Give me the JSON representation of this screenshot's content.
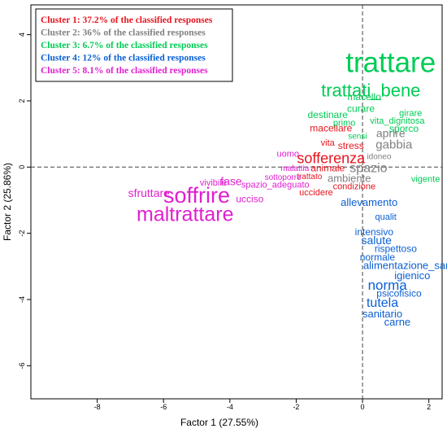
{
  "chart_data": {
    "type": "scatter",
    "title": "",
    "xlabel": "Factor 1 (27.55%)",
    "ylabel": "Factor 2 (25.86%)",
    "xlim": [
      -10,
      2.4
    ],
    "ylim": [
      -7.0,
      4.9
    ],
    "x_ticks": [
      -8,
      -6,
      -4,
      -2,
      0,
      2
    ],
    "y_ticks": [
      -6,
      -4,
      -2,
      0,
      2,
      4
    ],
    "reference_lines": {
      "x": 0,
      "y": 0,
      "style": "dashed"
    },
    "legend": {
      "placement": "top-left",
      "entries": [
        {
          "label": "Cluster 1: 37.2% of the classified responses",
          "color": "#e8141e"
        },
        {
          "label": "Cluster 2: 36% of the classified responses",
          "color": "#808080"
        },
        {
          "label": "Cluster 3: 6.7% of the classified responses",
          "color": "#00cc55"
        },
        {
          "label": "Cluster 4: 12% of the classified responses",
          "color": "#0a5fd4"
        },
        {
          "label": "Cluster 5: 8.1% of the classified responses",
          "color": "#e020d0"
        }
      ]
    },
    "series": [
      {
        "color": "#e8141e",
        "points": [
          {
            "label": "macellare",
            "x": -0.95,
            "y": 1.15,
            "size": 12
          },
          {
            "label": "vita",
            "x": -1.05,
            "y": 0.72,
            "size": 11
          },
          {
            "label": "stress",
            "x": -0.35,
            "y": 0.62,
            "size": 12
          },
          {
            "label": "sofferenza",
            "x": -0.95,
            "y": 0.24,
            "size": 18
          },
          {
            "label": "animale",
            "x": -1.05,
            "y": -0.05,
            "size": 12
          },
          {
            "label": "trattato",
            "x": -1.6,
            "y": -0.3,
            "size": 10
          },
          {
            "label": "condizione",
            "x": -0.25,
            "y": -0.6,
            "size": 11
          },
          {
            "label": "uccidere",
            "x": -1.4,
            "y": -0.78,
            "size": 11
          }
        ]
      },
      {
        "color": "#808080",
        "points": [
          {
            "label": "aprire",
            "x": 0.85,
            "y": 1.0,
            "size": 14
          },
          {
            "label": "gabbia",
            "x": 0.95,
            "y": 0.66,
            "size": 15
          },
          {
            "label": "idoneo",
            "x": 0.5,
            "y": 0.3,
            "size": 10
          },
          {
            "label": "spazio",
            "x": 0.18,
            "y": -0.05,
            "size": 16
          },
          {
            "label": "ambiente",
            "x": -0.4,
            "y": -0.36,
            "size": 13
          }
        ]
      },
      {
        "color": "#00cc55",
        "points": [
          {
            "label": "trattare",
            "x": 0.85,
            "y": 3.1,
            "size": 35
          },
          {
            "label": "trattati_bene",
            "x": 0.25,
            "y": 2.28,
            "size": 22
          },
          {
            "label": "macello",
            "x": 0.05,
            "y": 2.1,
            "size": 12
          },
          {
            "label": "curare",
            "x": -0.05,
            "y": 1.74,
            "size": 12
          },
          {
            "label": "destinare",
            "x": -1.05,
            "y": 1.56,
            "size": 12
          },
          {
            "label": "girare",
            "x": 1.45,
            "y": 1.62,
            "size": 11
          },
          {
            "label": "primo",
            "x": -0.55,
            "y": 1.32,
            "size": 11
          },
          {
            "label": "vita_dignitosa",
            "x": 1.05,
            "y": 1.38,
            "size": 11
          },
          {
            "label": "sporco",
            "x": 1.25,
            "y": 1.14,
            "size": 12
          },
          {
            "label": "sensi",
            "x": -0.15,
            "y": 0.92,
            "size": 10
          },
          {
            "label": "vigente",
            "x": 1.9,
            "y": -0.38,
            "size": 11
          }
        ]
      },
      {
        "color": "#0a5fd4",
        "points": [
          {
            "label": "allevamento",
            "x": 0.2,
            "y": -1.09,
            "size": 13
          },
          {
            "label": "qualit",
            "x": 0.7,
            "y": -1.52,
            "size": 11
          },
          {
            "label": "intensivo",
            "x": 0.35,
            "y": -1.98,
            "size": 12
          },
          {
            "label": "salute",
            "x": 0.42,
            "y": -2.24,
            "size": 14
          },
          {
            "label": "rispettoso",
            "x": 1.0,
            "y": -2.48,
            "size": 12
          },
          {
            "label": "normale",
            "x": 0.45,
            "y": -2.74,
            "size": 12
          },
          {
            "label": "alimentazione_san",
            "x": 1.35,
            "y": -3.0,
            "size": 13
          },
          {
            "label": "igienico",
            "x": 1.5,
            "y": -3.3,
            "size": 13
          },
          {
            "label": "norma",
            "x": 0.75,
            "y": -3.6,
            "size": 17
          },
          {
            "label": "psicofisico",
            "x": 1.1,
            "y": -3.84,
            "size": 12
          },
          {
            "label": "tutela",
            "x": 0.6,
            "y": -4.12,
            "size": 16
          },
          {
            "label": "sanitario",
            "x": 0.6,
            "y": -4.46,
            "size": 13
          },
          {
            "label": "carne",
            "x": 1.05,
            "y": -4.7,
            "size": 13
          }
        ]
      },
      {
        "color": "#e020d0",
        "points": [
          {
            "label": "uomo",
            "x": -2.25,
            "y": 0.38,
            "size": 11
          },
          {
            "label": "malattia",
            "x": -2.04,
            "y": -0.05,
            "size": 10
          },
          {
            "label": "sottoporre",
            "x": -2.4,
            "y": -0.32,
            "size": 10
          },
          {
            "label": "spazio_adeguato",
            "x": -2.63,
            "y": -0.55,
            "size": 11
          },
          {
            "label": "vivibile",
            "x": -4.5,
            "y": -0.49,
            "size": 11
          },
          {
            "label": "fase",
            "x": -3.96,
            "y": -0.46,
            "size": 14
          },
          {
            "label": "sfruttare",
            "x": -6.44,
            "y": -0.81,
            "size": 14
          },
          {
            "label": "soffrire",
            "x": -5.0,
            "y": -0.9,
            "size": 27
          },
          {
            "label": "ucciso",
            "x": -3.4,
            "y": -0.99,
            "size": 12
          },
          {
            "label": "maltrattare",
            "x": -5.35,
            "y": -1.47,
            "size": 25
          }
        ]
      }
    ]
  }
}
